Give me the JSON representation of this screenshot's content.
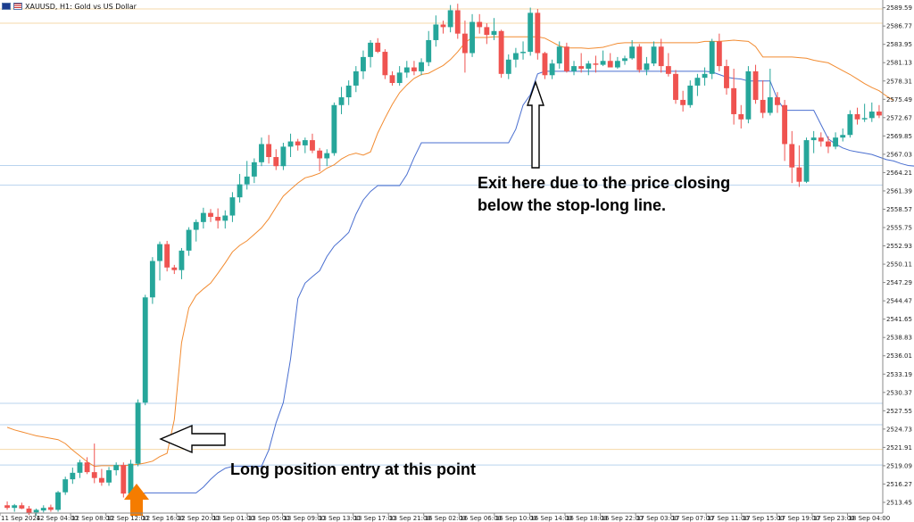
{
  "window": {
    "title": "XAUUSD, H1:  Gold vs US Dollar",
    "icons": [
      "au-flag-icon",
      "us-flag-icon"
    ]
  },
  "colors": {
    "bull": "#26a69a",
    "bear": "#ef5350",
    "upper_band": "#f28b30",
    "stop_line": "#4a6fd0",
    "axis": "#888888",
    "arrow_up": "#f57c00"
  },
  "chart_data": {
    "type": "candlestick",
    "symbol": "XAUUSD",
    "timeframe": "H1",
    "y_ticks": [
      "2589.59",
      "2586.77",
      "2583.95",
      "2581.13",
      "2578.31",
      "2575.49",
      "2572.67",
      "2569.85",
      "2567.03",
      "2564.21",
      "2561.39",
      "2558.57",
      "2555.75",
      "2552.93",
      "2550.11",
      "2547.29",
      "2544.47",
      "2541.65",
      "2538.83",
      "2536.01",
      "2533.19",
      "2530.37",
      "2527.55",
      "2524.73",
      "2521.91",
      "2519.09",
      "2516.27",
      "2513.45"
    ],
    "x_ticks": [
      "11 Sep 2024",
      "12 Sep 04:00",
      "12 Sep 08:00",
      "12 Sep 12:00",
      "12 Sep 16:00",
      "12 Sep 20:00",
      "13 Sep 01:00",
      "13 Sep 05:00",
      "13 Sep 09:00",
      "13 Sep 13:00",
      "13 Sep 17:00",
      "13 Sep 21:00",
      "16 Sep 02:00",
      "16 Sep 06:00",
      "16 Sep 10:00",
      "16 Sep 14:00",
      "16 Sep 18:00",
      "16 Sep 22:00",
      "17 Sep 03:00",
      "17 Sep 07:00",
      "17 Sep 11:00",
      "17 Sep 15:00",
      "17 Sep 19:00",
      "17 Sep 23:00",
      "18 Sep 04:00"
    ],
    "ylim": [
      2511.8,
      2590.5
    ],
    "candles": [
      [
        2513.0,
        2513.6,
        2512.3,
        2512.6
      ],
      [
        2512.6,
        2513.2,
        2512.0,
        2513.0
      ],
      [
        2513.0,
        2513.4,
        2512.4,
        2512.5
      ],
      [
        2512.5,
        2512.9,
        2511.5,
        2511.8
      ],
      [
        2511.9,
        2512.5,
        2511.4,
        2512.3
      ],
      [
        2512.2,
        2513.0,
        2511.9,
        2512.6
      ],
      [
        2512.7,
        2513.1,
        2512.0,
        2512.3
      ],
      [
        2512.3,
        2515.2,
        2512.0,
        2515.0
      ],
      [
        2515.0,
        2517.4,
        2514.6,
        2517.0
      ],
      [
        2517.0,
        2518.8,
        2516.3,
        2518.0
      ],
      [
        2518.0,
        2520.0,
        2517.2,
        2519.6
      ],
      [
        2519.6,
        2520.4,
        2517.8,
        2518.1
      ],
      [
        2518.1,
        2522.5,
        2516.4,
        2517.2
      ],
      [
        2517.2,
        2518.6,
        2516.0,
        2516.5
      ],
      [
        2516.5,
        2518.9,
        2516.0,
        2518.4
      ],
      [
        2518.4,
        2519.6,
        2517.6,
        2519.2
      ],
      [
        2519.2,
        2519.6,
        2514.2,
        2514.8
      ],
      [
        2514.8,
        2520.0,
        2513.2,
        2519.4
      ],
      [
        2519.4,
        2529.3,
        2519.0,
        2528.8
      ],
      [
        2528.8,
        2545.4,
        2528.4,
        2545.0
      ],
      [
        2545.0,
        2551.2,
        2544.0,
        2550.6
      ],
      [
        2550.6,
        2553.6,
        2547.6,
        2553.2
      ],
      [
        2553.2,
        2553.7,
        2549.0,
        2549.6
      ],
      [
        2549.6,
        2550.0,
        2548.6,
        2549.2
      ],
      [
        2549.2,
        2552.6,
        2547.8,
        2552.2
      ],
      [
        2552.2,
        2555.8,
        2551.4,
        2555.4
      ],
      [
        2555.4,
        2557.0,
        2553.6,
        2556.6
      ],
      [
        2556.6,
        2558.8,
        2555.6,
        2558.0
      ],
      [
        2558.0,
        2558.6,
        2556.6,
        2557.4
      ],
      [
        2557.4,
        2558.7,
        2555.6,
        2556.8
      ],
      [
        2556.8,
        2558.4,
        2555.6,
        2557.6
      ],
      [
        2557.6,
        2561.2,
        2556.6,
        2560.4
      ],
      [
        2560.4,
        2564.0,
        2559.6,
        2562.4
      ],
      [
        2562.4,
        2566.0,
        2561.6,
        2563.6
      ],
      [
        2563.6,
        2566.4,
        2562.6,
        2565.8
      ],
      [
        2565.8,
        2569.6,
        2565.2,
        2568.6
      ],
      [
        2568.6,
        2570.0,
        2565.6,
        2566.6
      ],
      [
        2566.6,
        2567.8,
        2564.6,
        2565.2
      ],
      [
        2565.2,
        2568.8,
        2564.6,
        2568.2
      ],
      [
        2568.2,
        2570.2,
        2566.6,
        2569.0
      ],
      [
        2569.0,
        2569.4,
        2567.6,
        2568.4
      ],
      [
        2568.4,
        2569.6,
        2567.2,
        2569.2
      ],
      [
        2569.2,
        2570.2,
        2567.2,
        2567.6
      ],
      [
        2567.6,
        2568.0,
        2564.4,
        2566.4
      ],
      [
        2566.4,
        2567.8,
        2565.2,
        2567.2
      ],
      [
        2567.2,
        2575.0,
        2566.8,
        2574.6
      ],
      [
        2574.6,
        2577.4,
        2573.2,
        2575.8
      ],
      [
        2575.8,
        2578.4,
        2574.6,
        2577.6
      ],
      [
        2577.6,
        2580.6,
        2576.6,
        2579.8
      ],
      [
        2579.8,
        2583.0,
        2578.6,
        2582.0
      ],
      [
        2582.0,
        2584.6,
        2580.4,
        2584.2
      ],
      [
        2584.2,
        2584.9,
        2582.6,
        2582.8
      ],
      [
        2582.8,
        2583.2,
        2578.6,
        2579.2
      ],
      [
        2579.2,
        2579.8,
        2577.6,
        2578.0
      ],
      [
        2578.0,
        2580.6,
        2577.6,
        2579.6
      ],
      [
        2579.6,
        2581.4,
        2578.8,
        2580.4
      ],
      [
        2580.4,
        2581.4,
        2579.2,
        2579.8
      ],
      [
        2579.8,
        2581.8,
        2579.2,
        2581.2
      ],
      [
        2581.2,
        2586.0,
        2580.6,
        2584.6
      ],
      [
        2584.6,
        2588.4,
        2583.6,
        2587.0
      ],
      [
        2587.0,
        2587.6,
        2585.6,
        2586.6
      ],
      [
        2586.6,
        2590.0,
        2585.8,
        2589.2
      ],
      [
        2589.2,
        2590.2,
        2584.8,
        2585.6
      ],
      [
        2585.6,
        2587.6,
        2579.6,
        2582.6
      ],
      [
        2582.6,
        2588.6,
        2582.0,
        2587.4
      ],
      [
        2587.4,
        2588.6,
        2585.6,
        2586.6
      ],
      [
        2586.6,
        2587.2,
        2584.0,
        2585.4
      ],
      [
        2585.4,
        2588.0,
        2584.6,
        2586.0
      ],
      [
        2586.0,
        2586.2,
        2578.8,
        2579.4
      ],
      [
        2579.4,
        2582.4,
        2578.6,
        2581.6
      ],
      [
        2581.6,
        2583.4,
        2580.4,
        2582.6
      ],
      [
        2582.6,
        2584.4,
        2581.6,
        2582.8
      ],
      [
        2582.8,
        2589.6,
        2582.2,
        2588.8
      ],
      [
        2588.8,
        2589.4,
        2581.6,
        2582.6
      ],
      [
        2582.6,
        2582.8,
        2578.6,
        2579.2
      ],
      [
        2579.2,
        2581.6,
        2578.6,
        2581.0
      ],
      [
        2581.0,
        2584.4,
        2580.2,
        2583.6
      ],
      [
        2583.6,
        2584.2,
        2579.6,
        2579.8
      ],
      [
        2579.8,
        2581.4,
        2579.2,
        2580.6
      ],
      [
        2580.6,
        2582.6,
        2579.6,
        2580.2
      ],
      [
        2580.2,
        2581.4,
        2579.2,
        2581.0
      ],
      [
        2581.0,
        2582.2,
        2579.6,
        2580.8
      ],
      [
        2580.8,
        2583.0,
        2580.6,
        2581.4
      ],
      [
        2581.4,
        2582.6,
        2580.6,
        2580.4
      ],
      [
        2580.4,
        2582.0,
        2580.2,
        2581.4
      ],
      [
        2581.4,
        2582.2,
        2580.8,
        2581.8
      ],
      [
        2581.8,
        2584.6,
        2581.6,
        2583.6
      ],
      [
        2583.6,
        2584.0,
        2579.6,
        2580.0
      ],
      [
        2580.0,
        2582.0,
        2579.2,
        2581.0
      ],
      [
        2581.0,
        2584.4,
        2580.6,
        2583.6
      ],
      [
        2583.6,
        2584.8,
        2579.6,
        2580.6
      ],
      [
        2580.6,
        2582.6,
        2579.0,
        2579.4
      ],
      [
        2579.4,
        2580.0,
        2574.8,
        2575.4
      ],
      [
        2575.4,
        2576.8,
        2573.6,
        2574.6
      ],
      [
        2574.6,
        2578.4,
        2574.2,
        2577.6
      ],
      [
        2577.6,
        2579.4,
        2576.0,
        2578.8
      ],
      [
        2578.8,
        2580.4,
        2577.6,
        2579.4
      ],
      [
        2579.4,
        2584.8,
        2578.6,
        2584.4
      ],
      [
        2584.4,
        2585.6,
        2579.8,
        2580.6
      ],
      [
        2580.6,
        2581.6,
        2576.2,
        2577.2
      ],
      [
        2577.2,
        2580.2,
        2571.6,
        2573.2
      ],
      [
        2573.2,
        2574.6,
        2571.0,
        2572.4
      ],
      [
        2572.4,
        2580.6,
        2571.8,
        2579.8
      ],
      [
        2579.8,
        2580.8,
        2574.8,
        2575.4
      ],
      [
        2575.4,
        2578.4,
        2572.6,
        2573.4
      ],
      [
        2573.4,
        2580.2,
        2573.0,
        2575.8
      ],
      [
        2575.8,
        2576.6,
        2573.4,
        2574.6
      ],
      [
        2574.6,
        2575.4,
        2566.0,
        2568.6
      ],
      [
        2568.6,
        2570.6,
        2562.6,
        2565.0
      ],
      [
        2565.0,
        2568.4,
        2562.0,
        2562.8
      ],
      [
        2562.8,
        2569.6,
        2562.6,
        2569.2
      ],
      [
        2569.2,
        2570.6,
        2567.2,
        2569.6
      ],
      [
        2569.6,
        2570.4,
        2568.2,
        2569.0
      ],
      [
        2569.0,
        2569.8,
        2567.2,
        2568.2
      ],
      [
        2568.2,
        2570.4,
        2567.8,
        2569.6
      ],
      [
        2569.6,
        2571.0,
        2569.0,
        2570.0
      ],
      [
        2570.0,
        2573.8,
        2569.6,
        2573.2
      ],
      [
        2573.2,
        2574.2,
        2571.6,
        2572.4
      ],
      [
        2572.4,
        2574.8,
        2572.0,
        2572.6
      ],
      [
        2572.6,
        2575.0,
        2572.0,
        2573.6
      ],
      [
        2573.6,
        2574.6,
        2572.6,
        2573.0
      ]
    ],
    "series": [
      {
        "name": "",
        "values": [
          2525.0,
          2524.6,
          2524.3,
          2524.0,
          2523.7,
          2523.5,
          2523.3,
          2523.1,
          2522.5,
          2521.5,
          2520.6,
          2519.7,
          2519.0,
          2519.1,
          2519.1,
          2519.1,
          2519.1,
          2519.2,
          2519.3,
          2519.5,
          2519.8,
          2520.5,
          2521.0,
          2526.2,
          2538.0,
          2543.4,
          2545.3,
          2546.3,
          2547.2,
          2548.7,
          2550.3,
          2552.0,
          2553.0,
          2553.7,
          2554.7,
          2555.7,
          2557.1,
          2558.9,
          2560.6,
          2561.6,
          2562.6,
          2563.4,
          2563.7,
          2564.1,
          2564.9,
          2565.4,
          2566.3,
          2566.9,
          2567.2,
          2566.9,
          2567.4,
          2570.3,
          2572.6,
          2574.7,
          2576.5,
          2577.7,
          2578.7,
          2579.3,
          2579.5,
          2580.1,
          2580.7,
          2581.6,
          2582.8,
          2584.2,
          2585.0,
          2585.0,
          2585.0,
          2585.1,
          2585.1,
          2585.1,
          2585.1,
          2585.1,
          2585.1,
          2585.1,
          2584.9,
          2584.3,
          2583.7,
          2583.4,
          2583.4,
          2583.4,
          2583.3,
          2583.4,
          2583.5,
          2583.8,
          2584.1,
          2584.2,
          2584.2,
          2584.2,
          2584.2,
          2584.2,
          2584.2,
          2584.2,
          2584.2,
          2584.2,
          2584.2,
          2584.2,
          2584.4,
          2584.4,
          2584.4,
          2584.5,
          2584.6,
          2584.5,
          2584.4,
          2583.6,
          2582.0,
          2582.0,
          2582.0,
          2582.0,
          2582.0,
          2581.9,
          2581.8,
          2581.5,
          2581.3,
          2581.1,
          2580.5,
          2579.9,
          2579.3,
          2578.6,
          2577.9,
          2577.3,
          2576.8,
          2576.0,
          2575.3
        ]
      },
      {
        "name": "",
        "values": [
          null,
          null,
          null,
          null,
          null,
          null,
          null,
          null,
          null,
          null,
          null,
          null,
          null,
          null,
          null,
          null,
          null,
          2513.5,
          2514.6,
          2514.9,
          2514.9,
          2514.9,
          2514.9,
          2514.9,
          2514.9,
          2514.9,
          2514.9,
          2515.8,
          2517.0,
          2518.0,
          2518.7,
          2519.0,
          2519.0,
          2519.0,
          2519.0,
          2519.0,
          2521.5,
          2525.7,
          2528.8,
          2535.5,
          2544.8,
          2547.2,
          2548.2,
          2549.1,
          2551.3,
          2552.9,
          2553.9,
          2555.0,
          2557.8,
          2560.0,
          2561.3,
          2562.2,
          2562.2,
          2562.2,
          2562.2,
          2563.9,
          2566.5,
          2568.8,
          2568.8,
          2568.8,
          2568.8,
          2568.8,
          2568.8,
          2568.8,
          2568.8,
          2568.8,
          2568.8,
          2568.8,
          2568.8,
          2568.8,
          2570.9,
          2574.6,
          2576.2,
          2579.4,
          2579.8,
          2579.8,
          2579.8,
          2579.8,
          2579.8,
          2579.8,
          2579.8,
          2579.8,
          2579.8,
          2579.8,
          2579.8,
          2579.8,
          2579.8,
          2579.8,
          2579.8,
          2579.8,
          2579.8,
          2579.8,
          2579.8,
          2579.8,
          2579.8,
          2579.8,
          2579.8,
          2579.7,
          2579.3,
          2578.9,
          2578.7,
          2578.6,
          2578.3,
          2578.3,
          2578.3,
          2578.3,
          2575.5,
          2573.8,
          2573.8,
          2573.8,
          2573.8,
          2573.8,
          2571.6,
          2569.4,
          2568.6,
          2568.0,
          2567.6,
          2567.4,
          2567.2,
          2567.0,
          2566.6,
          2566.2,
          2566.0,
          2565.6,
          2565.3,
          2565.2,
          2565.1
        ]
      }
    ],
    "horizontal_lines": [
      2589.4,
      2587.2,
      2528.7,
      2525.4,
      2521.6,
      2519.2,
      2565.3,
      2562.3
    ]
  },
  "annotations": {
    "exit_line1": "Exit here due to the price closing",
    "exit_line2": "below the stop-long line.",
    "entry_text": "Long position entry at this point"
  }
}
